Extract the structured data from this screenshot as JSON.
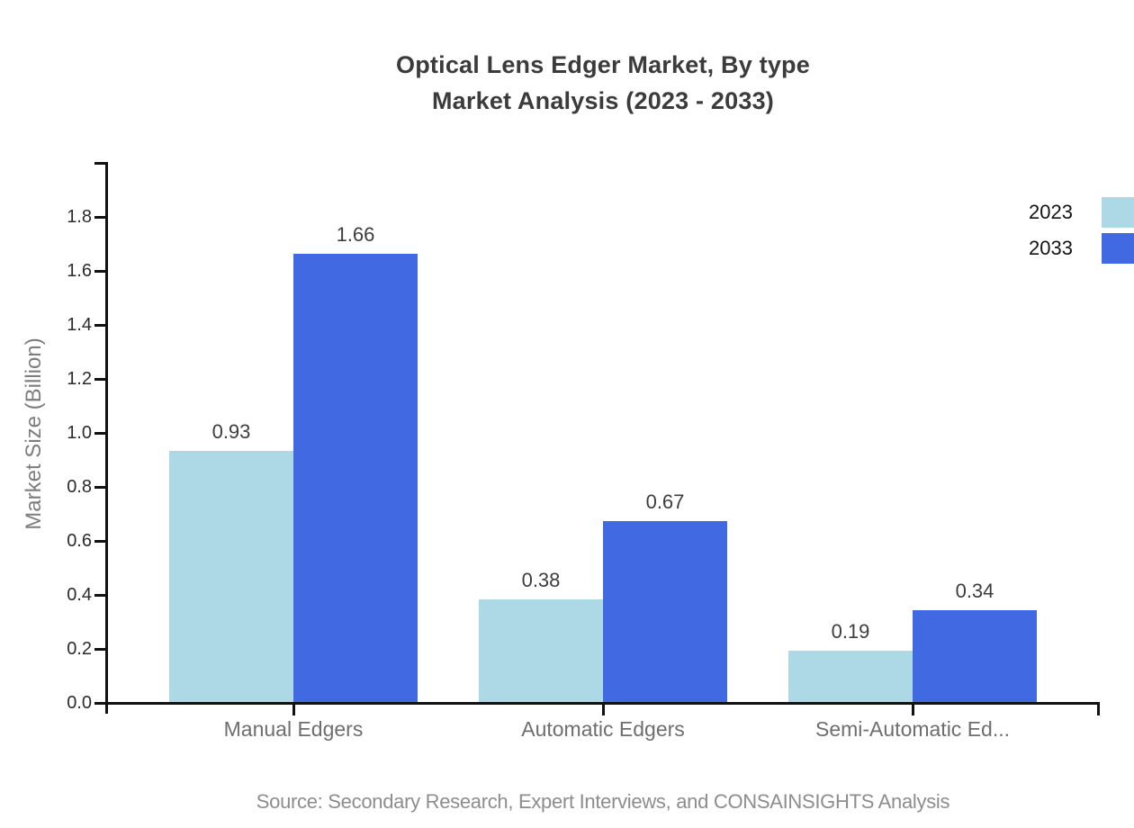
{
  "chart_data": {
    "type": "bar",
    "title": "Optical Lens Edger Market, By type",
    "subtitle": "Market Analysis (2023 - 2033)",
    "ylabel": "Market Size (Billion)",
    "categories": [
      "Manual Edgers",
      "Automatic Edgers",
      "Semi-Automatic Ed..."
    ],
    "series": [
      {
        "name": "2023",
        "color": "#ADD8E6",
        "values": [
          0.93,
          0.38,
          0.19
        ]
      },
      {
        "name": "2033",
        "color": "#4169E1",
        "values": [
          1.66,
          0.67,
          0.34
        ]
      }
    ],
    "value_labels": [
      [
        "0.93",
        "0.38",
        "0.19"
      ],
      [
        "1.66",
        "0.67",
        "0.34"
      ]
    ],
    "yticks": [
      "0.0",
      "0.2",
      "0.4",
      "0.6",
      "0.8",
      "1.0",
      "1.2",
      "1.4",
      "1.6",
      "1.8"
    ],
    "ylim": [
      0,
      2.0
    ],
    "grid": false,
    "legend_position": "top-right",
    "axis_color": "#111111",
    "source": "Source: Secondary Research, Expert Interviews, and CONSAINSIGHTS Analysis"
  }
}
